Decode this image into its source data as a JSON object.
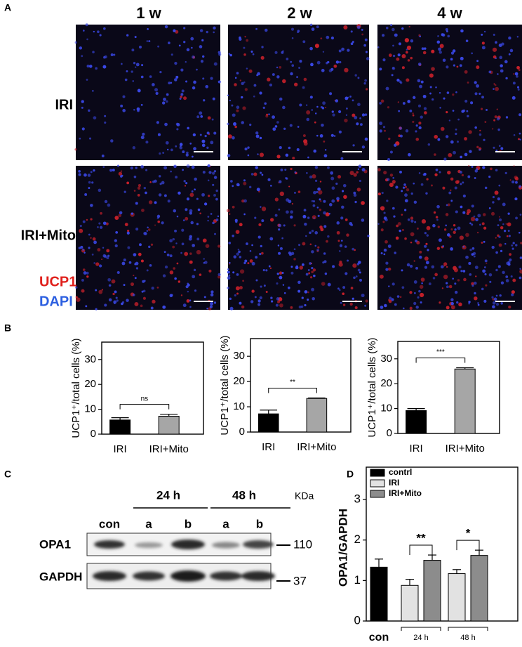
{
  "panel_labels": [
    "A",
    "B",
    "C",
    "D"
  ],
  "images": {
    "columns": [
      "1 w",
      "2 w",
      "4 w"
    ],
    "rows": [
      "IRI",
      "IRI+Mito"
    ],
    "stains": [
      "UCP1",
      "DAPI"
    ]
  },
  "blot": {
    "groups": [
      "24 h",
      "48 h"
    ],
    "lanes": [
      "con",
      "a",
      "b",
      "a",
      "b"
    ],
    "unit": "KDa",
    "proteins": [
      "OPA1",
      "GAPDH"
    ],
    "markers": [
      "110",
      "37"
    ]
  },
  "chart_data": [
    {
      "type": "bar",
      "categories": [
        "IRI",
        "IRI+Mito"
      ],
      "values": [
        5.7,
        7.2
      ],
      "errors": [
        0.9,
        0.8
      ],
      "colors": [
        "#000000",
        "#a6a6a6"
      ],
      "ylabel": "UCP1⁺/total cells (%)",
      "ylim": [
        0,
        37
      ],
      "yticks": [
        0,
        10,
        20,
        30
      ],
      "annotation": "ns"
    },
    {
      "type": "bar",
      "categories": [
        "IRI",
        "IRI+Mito"
      ],
      "values": [
        7.2,
        13.3
      ],
      "errors": [
        1.5,
        0.2
      ],
      "colors": [
        "#000000",
        "#a6a6a6"
      ],
      "ylabel": "UCP1⁺/total cells (%)",
      "ylim": [
        0,
        37
      ],
      "yticks": [
        0,
        10,
        20,
        30
      ],
      "annotation": "**"
    },
    {
      "type": "bar",
      "categories": [
        "IRI",
        "IRI+Mito"
      ],
      "values": [
        9.2,
        25.9
      ],
      "errors": [
        0.8,
        0.5
      ],
      "colors": [
        "#000000",
        "#a6a6a6"
      ],
      "ylabel": "UCP1⁺/total cells (%)",
      "ylim": [
        0,
        37
      ],
      "yticks": [
        0,
        10,
        20,
        30
      ],
      "annotation": "***"
    },
    {
      "type": "grouped_bar",
      "categories": [
        "con",
        "24 h",
        "48 h"
      ],
      "series": [
        {
          "name": "contrl",
          "color": "#000000",
          "values": [
            1.33,
            null,
            null
          ],
          "errors": [
            0.2,
            null,
            null
          ]
        },
        {
          "name": "IRI",
          "color": "#e2e2e2",
          "values": [
            null,
            0.88,
            1.17
          ],
          "errors": [
            null,
            0.15,
            0.1
          ]
        },
        {
          "name": "IRI+Mito",
          "color": "#8c8c8c",
          "values": [
            null,
            1.5,
            1.62
          ],
          "errors": [
            null,
            0.13,
            0.13
          ]
        }
      ],
      "ylabel": "OPA1/GAPDH",
      "ylim": [
        0,
        3.8
      ],
      "yticks": [
        0,
        1,
        2,
        3
      ],
      "annotations": [
        "**",
        "*"
      ],
      "legend": "upper left"
    }
  ]
}
